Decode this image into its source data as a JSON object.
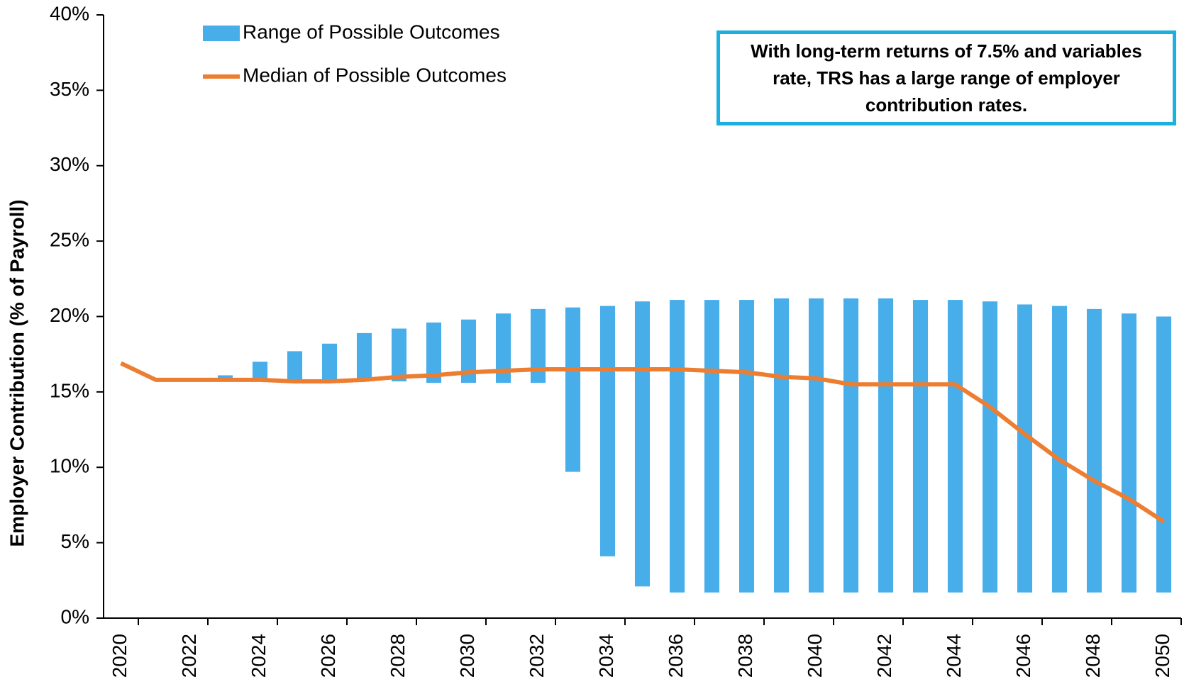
{
  "chart_data": {
    "type": "range-line",
    "annotation": "With long-term returns of 7.5% and variables rate, TRS has a large range of employer contribution rates.",
    "y_label": "Employer Contribution (% of Payroll)",
    "categories": [
      "2020",
      null,
      "2022",
      null,
      "2024",
      null,
      "2026",
      null,
      "2028",
      null,
      "2030",
      null,
      "2032",
      null,
      "2034",
      null,
      "2036",
      null,
      "2038",
      null,
      "2040",
      null,
      "2042",
      null,
      "2044",
      null,
      "2046",
      null,
      "2048",
      null,
      "2050"
    ],
    "series": [
      {
        "name": "Range of Possible Outcomes",
        "type": "range",
        "color": "#47aeea",
        "low": [
          null,
          null,
          null,
          15.8,
          15.8,
          15.7,
          15.7,
          15.8,
          15.7,
          15.6,
          15.6,
          15.6,
          15.6,
          9.7,
          4.1,
          2.1,
          1.7,
          1.7,
          1.7,
          1.7,
          1.7,
          1.7,
          1.7,
          1.7,
          1.7,
          1.7,
          1.7,
          1.7,
          1.7,
          1.7,
          1.7
        ],
        "high": [
          null,
          null,
          null,
          16.1,
          17.0,
          17.7,
          18.2,
          18.9,
          19.2,
          19.6,
          19.8,
          20.2,
          20.5,
          20.6,
          20.7,
          21.0,
          21.1,
          21.1,
          21.1,
          21.2,
          21.2,
          21.2,
          21.2,
          21.1,
          21.1,
          21.0,
          20.8,
          20.7,
          20.5,
          20.2,
          20.0
        ]
      },
      {
        "name": "Median of Possible Outcomes",
        "type": "line",
        "color": "#ed7d31",
        "values": [
          16.9,
          15.8,
          15.8,
          15.8,
          15.8,
          15.7,
          15.7,
          15.8,
          16.0,
          16.1,
          16.3,
          16.4,
          16.5,
          16.5,
          16.5,
          16.5,
          16.5,
          16.4,
          16.3,
          16.0,
          15.9,
          15.5,
          15.5,
          15.5,
          15.5,
          14.0,
          12.2,
          10.5,
          9.1,
          7.9,
          6.4
        ]
      }
    ],
    "ylim": [
      0,
      40
    ],
    "yticks": [
      {
        "value": 0,
        "label": "0%"
      },
      {
        "value": 5,
        "label": "5%"
      },
      {
        "value": 10,
        "label": "10%"
      },
      {
        "value": 15,
        "label": "15%"
      },
      {
        "value": 20,
        "label": "20%"
      },
      {
        "value": 25,
        "label": "25%"
      },
      {
        "value": 30,
        "label": "30%"
      },
      {
        "value": 35,
        "label": "35%"
      },
      {
        "value": 40,
        "label": "40%"
      }
    ],
    "grid": false,
    "legend": "top-left"
  }
}
